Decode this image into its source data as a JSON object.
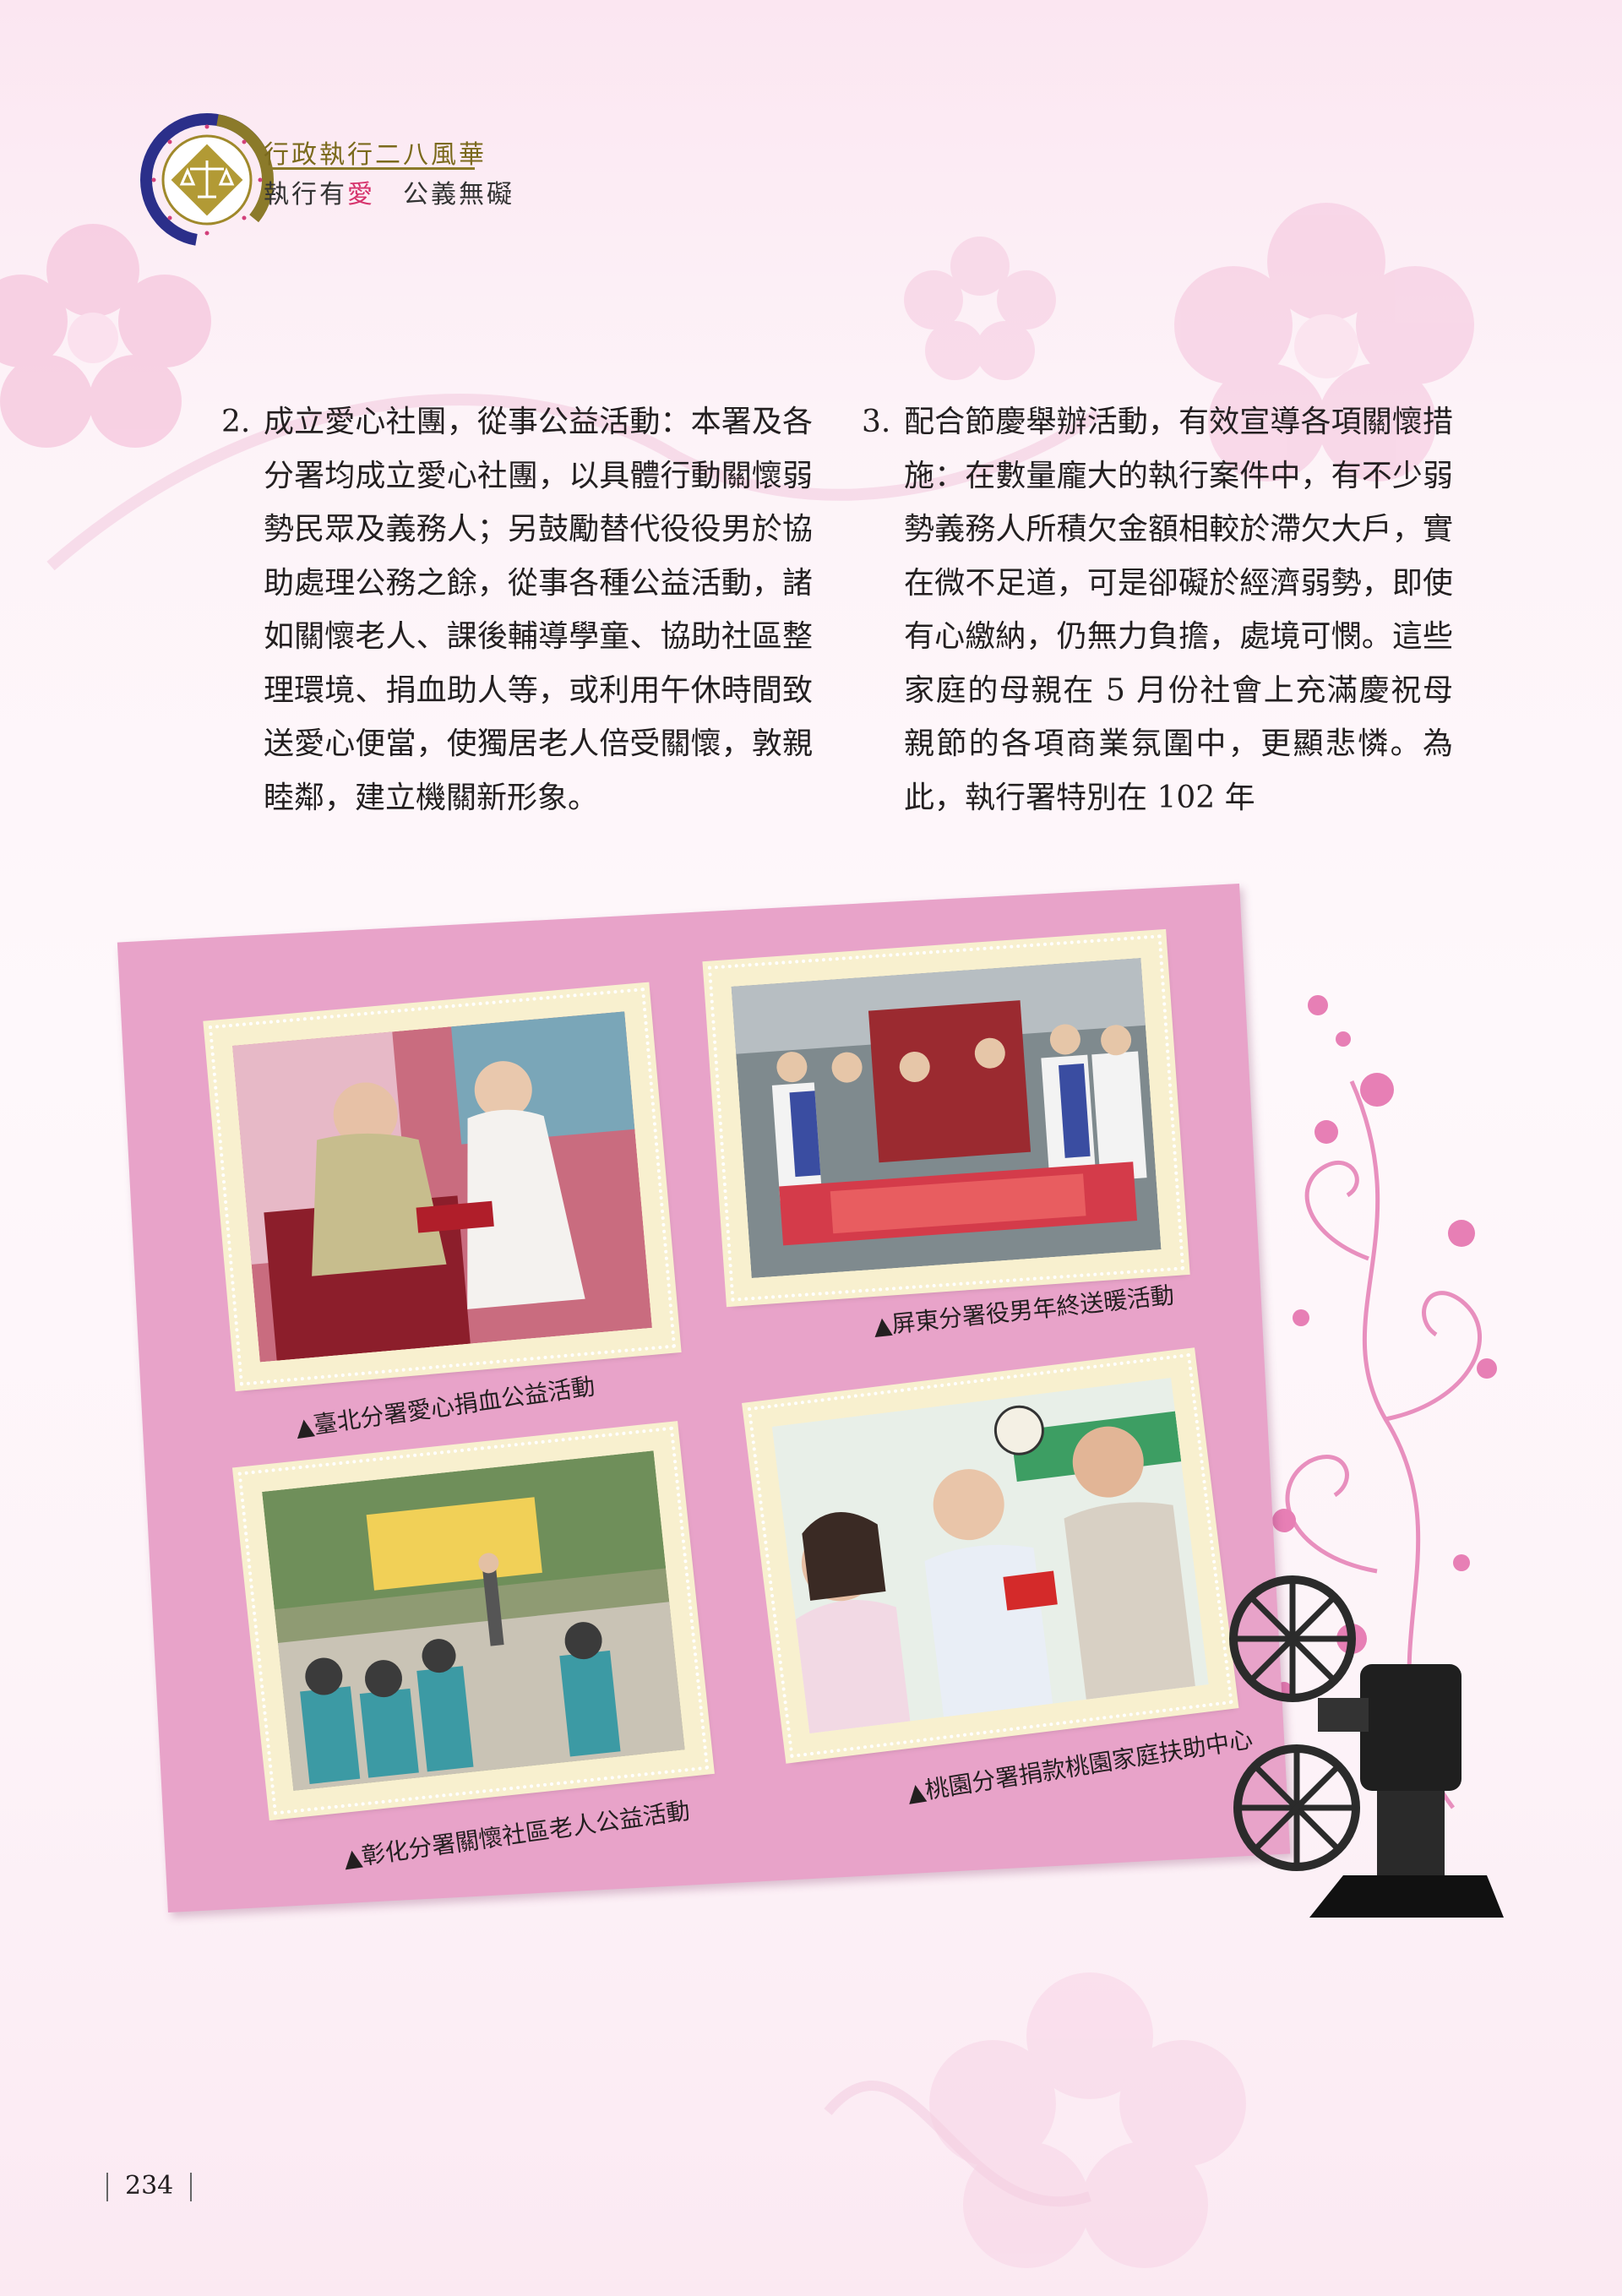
{
  "header": {
    "title": "行政執行二八風華",
    "subtitle_pre": "執行有",
    "subtitle_love": "愛",
    "subtitle_post": "　公義無礙"
  },
  "body": {
    "left": {
      "num": "2.",
      "text": "成立愛心社團，從事公益活動：本署及各分署均成立愛心社團，以具體行動關懷弱勢民眾及義務人；另鼓勵替代役役男於協助處理公務之餘，從事各種公益活動，諸如關懷老人、課後輔導學童、協助社區整理環境、捐血助人等，或利用午休時間致送愛心便當，使獨居老人倍受關懷，敦親睦鄰，建立機關新形象。"
    },
    "right": {
      "num": "3.",
      "text": "配合節慶舉辦活動，有效宣導各項關懷措施：在數量龐大的執行案件中，有不少弱勢義務人所積欠金額相較於滯欠大戶，實在微不足道，可是卻礙於經濟弱勢，即使有心繳納，仍無力負擔，處境可憫。這些家庭的母親在 5 月份社會上充滿慶祝母親節的各項商業氛圍中，更顯悲憐。為此，執行署特別在 102 年"
    }
  },
  "photos": [
    {
      "caption": "▲臺北分署愛心捐血公益活動"
    },
    {
      "caption": "▲屏東分署役男年終送暖活動"
    },
    {
      "caption": "▲彰化分署關懷社區老人公益活動"
    },
    {
      "caption": "▲桃園分署捐款桃園家庭扶助中心"
    }
  ],
  "footer": {
    "page_number": "234"
  },
  "colors": {
    "card": "#e8a3c9",
    "stamp": "#f8f0cf",
    "accent": "#6d3b86",
    "love": "#d6336c"
  }
}
